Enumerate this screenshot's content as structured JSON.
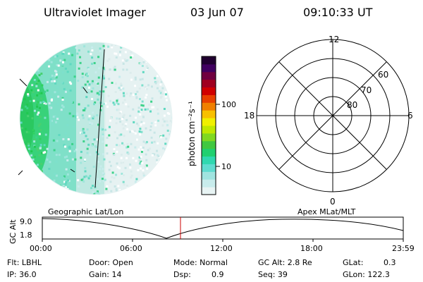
{
  "header": {
    "title": "Ultraviolet Imager",
    "date": "03 Jun 07",
    "time": "09:10:33 UT"
  },
  "colorbar": {
    "label": "photon cm⁻²s⁻¹",
    "ticks": [
      "100",
      "10"
    ],
    "colors": [
      "#e8f4f4",
      "#c8ecec",
      "#a0e4e0",
      "#60dcd0",
      "#30d8b0",
      "#20d070",
      "#40c840",
      "#80d820",
      "#c0e800",
      "#f0f000",
      "#f8c000",
      "#f08000",
      "#e84000",
      "#d00000",
      "#a00020",
      "#700040",
      "#400060",
      "#200030"
    ]
  },
  "polar_grid": {
    "clock_labels": {
      "top": "12",
      "right": "6",
      "bottom": "0",
      "left": "18"
    },
    "lat_labels": [
      "60",
      "70",
      "80"
    ]
  },
  "timeline": {
    "left_title": "Geographic Lat/Lon",
    "right_title": "Apex MLat/MLT",
    "ylabel": "GC Alt",
    "yticks": [
      "9.0",
      "1.8"
    ],
    "xticks": [
      "00:00",
      "06:00",
      "12:00",
      "18:00",
      "23:59"
    ],
    "marker_color": "#cc0000"
  },
  "info": {
    "flt": "Flt: LBHL",
    "ip": "IP: 36.0",
    "door": "Door: Open",
    "gain": "Gain: 14",
    "mode": "Mode: Normal",
    "dsp_label": "Dsp:",
    "dsp_value": "0.9",
    "gc_alt": "GC Alt: 2.8 Re",
    "seq": "Seq: 39",
    "glat_label": "GLat:",
    "glat_value": "0.3",
    "glon": "GLon: 122.3"
  }
}
